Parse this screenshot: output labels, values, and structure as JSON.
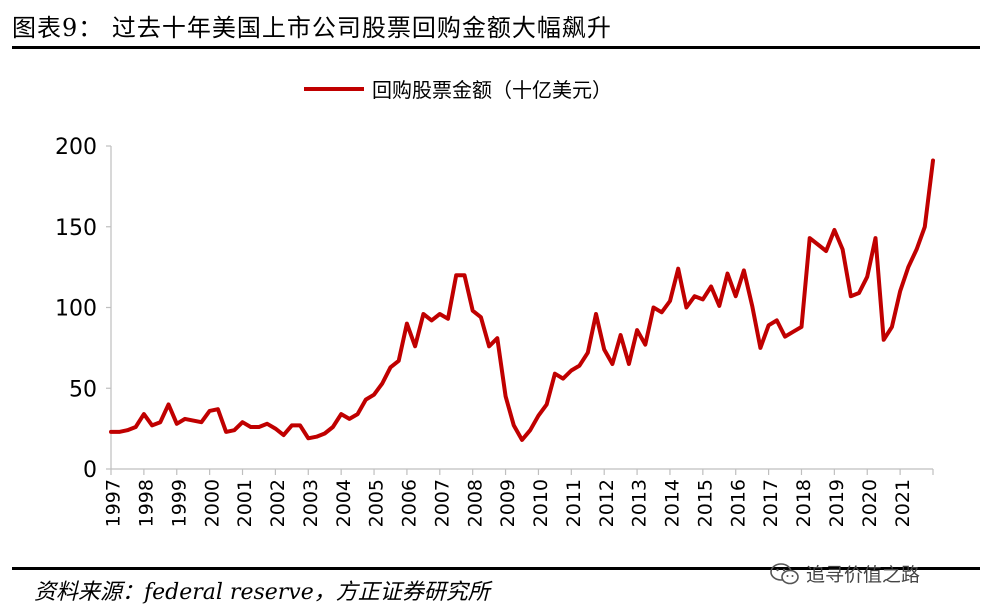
{
  "figure": {
    "title": "图表9：  过去十年美国上市公司股票回购金额大幅飙升",
    "source": "资料来源：federal reserve，方正证券研究所",
    "watermark": "追寻价值之路",
    "watermark_icon": "wechat-icon"
  },
  "chart_data": {
    "type": "line",
    "title": "",
    "xlabel": "",
    "ylabel": "",
    "ylim": [
      0,
      200
    ],
    "yticks": [
      0,
      50,
      100,
      150,
      200
    ],
    "xlim": [
      1997,
      2022
    ],
    "xticks": [
      "1997",
      "1998",
      "1999",
      "2000",
      "2001",
      "2002",
      "2003",
      "2004",
      "2005",
      "2006",
      "2007",
      "2008",
      "2009",
      "2010",
      "2011",
      "2012",
      "2013",
      "2014",
      "2015",
      "2016",
      "2017",
      "2018",
      "2019",
      "2020",
      "2021"
    ],
    "grid": false,
    "legend": "top-center",
    "series": [
      {
        "name": "回购股票金额（十亿美元）",
        "color": "#c00000",
        "x": [
          1997.0,
          1997.25,
          1997.5,
          1997.75,
          1998.0,
          1998.25,
          1998.5,
          1998.75,
          1999.0,
          1999.25,
          1999.5,
          1999.75,
          2000.0,
          2000.25,
          2000.5,
          2000.75,
          2001.0,
          2001.25,
          2001.5,
          2001.75,
          2002.0,
          2002.25,
          2002.5,
          2002.75,
          2003.0,
          2003.25,
          2003.5,
          2003.75,
          2004.0,
          2004.25,
          2004.5,
          2004.75,
          2005.0,
          2005.25,
          2005.5,
          2005.75,
          2006.0,
          2006.25,
          2006.5,
          2006.75,
          2007.0,
          2007.25,
          2007.5,
          2007.75,
          2008.0,
          2008.25,
          2008.5,
          2008.75,
          2009.0,
          2009.25,
          2009.5,
          2009.75,
          2010.0,
          2010.25,
          2010.5,
          2010.75,
          2011.0,
          2011.25,
          2011.5,
          2011.75,
          2012.0,
          2012.25,
          2012.5,
          2012.75,
          2013.0,
          2013.25,
          2013.5,
          2013.75,
          2014.0,
          2014.25,
          2014.5,
          2014.75,
          2015.0,
          2015.25,
          2015.5,
          2015.75,
          2016.0,
          2016.25,
          2016.5,
          2016.75,
          2017.0,
          2017.25,
          2017.5,
          2017.75,
          2018.0,
          2018.25,
          2018.5,
          2018.75,
          2019.0,
          2019.25,
          2019.5,
          2019.75,
          2020.0,
          2020.25,
          2020.5,
          2020.75,
          2021.0,
          2021.25,
          2021.5,
          2021.75,
          2022.0
        ],
        "values": [
          23,
          23,
          24,
          26,
          34,
          27,
          29,
          40,
          28,
          31,
          30,
          29,
          36,
          37,
          23,
          24,
          29,
          26,
          26,
          28,
          25,
          21,
          27,
          27,
          19,
          20,
          22,
          26,
          34,
          31,
          34,
          43,
          46,
          53,
          63,
          67,
          90,
          76,
          96,
          92,
          96,
          93,
          120,
          120,
          98,
          94,
          76,
          81,
          45,
          27,
          18,
          24,
          33,
          40,
          59,
          56,
          61,
          64,
          72,
          96,
          74,
          65,
          83,
          65,
          86,
          77,
          100,
          97,
          104,
          124,
          100,
          107,
          105,
          113,
          101,
          121,
          107,
          123,
          101,
          75,
          89,
          92,
          82,
          85,
          88,
          143,
          139,
          135,
          148,
          136,
          107,
          109,
          119,
          143,
          80,
          88,
          110,
          125,
          136,
          150,
          191
        ]
      }
    ]
  }
}
